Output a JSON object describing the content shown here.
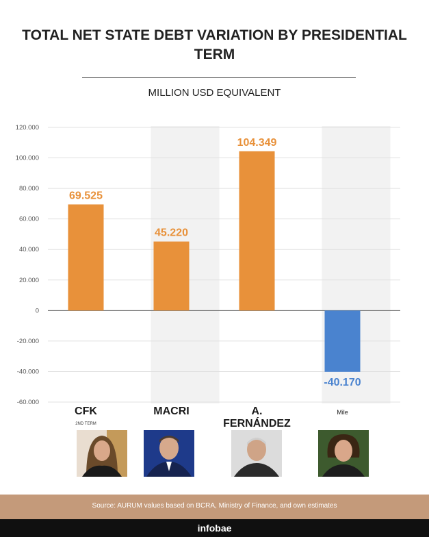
{
  "chart_data": {
    "type": "bar",
    "title": "TOTAL NET STATE DEBT VARIATION BY PRESIDENTIAL TERM",
    "subtitle": "MILLION USD EQUIVALENT",
    "categories": [
      "CFK",
      "MACRI",
      "A.  FERNÁNDEZ",
      "Mile"
    ],
    "category_subtitles": [
      "2ND TERM",
      "",
      "",
      ""
    ],
    "values": [
      69525,
      45220,
      104349,
      -40170
    ],
    "value_labels": [
      "69.525",
      "45.220",
      "104.349",
      "-40.170"
    ],
    "ylim": [
      -60000,
      120000
    ],
    "ytick_values": [
      120000,
      100000,
      80000,
      60000,
      40000,
      20000,
      0,
      -20000,
      -40000,
      -60000
    ],
    "ytick_labels": [
      "120.000",
      "100.000",
      "80.000",
      "60.000",
      "40.000",
      "20.000",
      "0",
      "-20.000",
      "-40.000",
      "-60.000"
    ],
    "positive_color": "#e8913a",
    "negative_color": "#4a83cf",
    "alternate_band_color": "#f2f2f2"
  },
  "footer": {
    "source": "Source: AURUM values based on BCRA, Ministry of Finance, and own estimates",
    "brand": "infobae"
  },
  "colors": {
    "footer_band": "#c49a7a",
    "brand_bar": "#101010"
  }
}
